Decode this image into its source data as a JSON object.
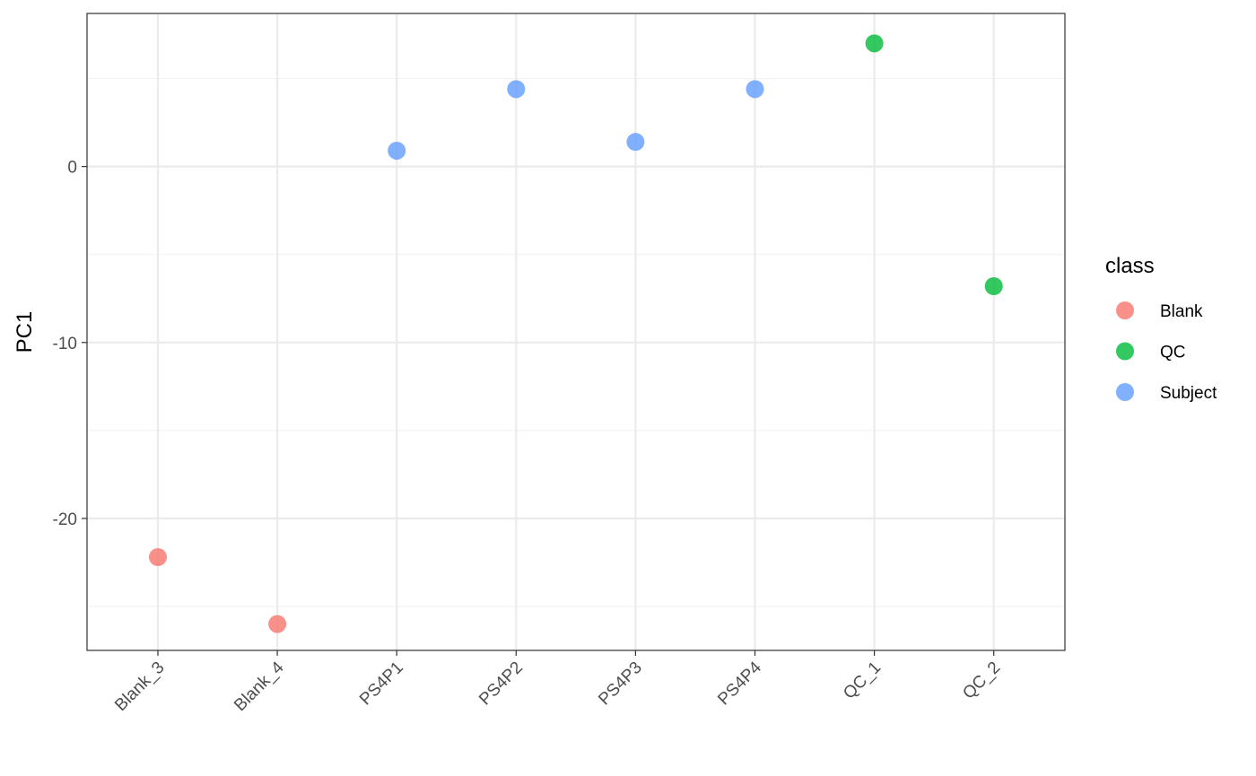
{
  "chart_data": {
    "type": "scatter",
    "ylabel": "PC1",
    "ylim": [
      -27.5,
      8.7
    ],
    "y_ticks": [
      {
        "value": 0,
        "label": "0"
      },
      {
        "value": -10,
        "label": "-10"
      },
      {
        "value": -20,
        "label": "-20"
      }
    ],
    "categories": [
      "Blank_3",
      "Blank_4",
      "PS4P1",
      "PS4P2",
      "PS4P3",
      "PS4P4",
      "QC_1",
      "QC_2"
    ],
    "grid": true,
    "legend": {
      "title": "class",
      "placement": "right",
      "entries": [
        {
          "label": "Blank",
          "color": "#F8766D"
        },
        {
          "label": "QC",
          "color": "#00BA38"
        },
        {
          "label": "Subject",
          "color": "#619CFF"
        }
      ]
    },
    "points": [
      {
        "x": "Blank_3",
        "y": -22.2,
        "class": "Blank"
      },
      {
        "x": "Blank_4",
        "y": -26.0,
        "class": "Blank"
      },
      {
        "x": "PS4P1",
        "y": 0.9,
        "class": "Subject"
      },
      {
        "x": "PS4P2",
        "y": 4.4,
        "class": "Subject"
      },
      {
        "x": "PS4P3",
        "y": 1.4,
        "class": "Subject"
      },
      {
        "x": "PS4P4",
        "y": 4.4,
        "class": "Subject"
      },
      {
        "x": "QC_1",
        "y": 7.0,
        "class": "QC"
      },
      {
        "x": "QC_2",
        "y": -6.8,
        "class": "QC"
      }
    ]
  }
}
